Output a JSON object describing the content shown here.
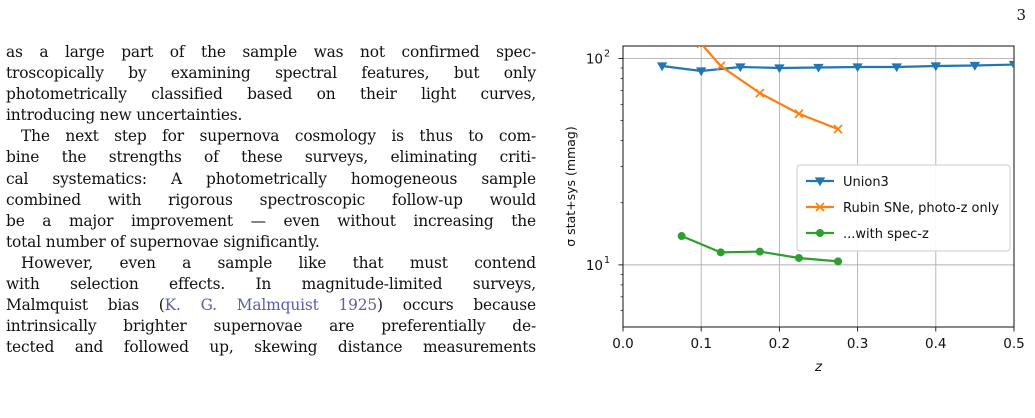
{
  "page": {
    "number": "3"
  },
  "body_text": {
    "lines": [
      {
        "text": "as a large part of the sample was not confirmed spec-",
        "justify": true
      },
      {
        "text": "troscopically by examining spectral features, but only",
        "justify": true
      },
      {
        "text": "photometrically classified based on their light curves,",
        "justify": true
      },
      {
        "text": "introducing new uncertainties.",
        "justify": false
      },
      {
        "text": "The next step for supernova cosmology is thus to com-",
        "justify": true,
        "indent": true
      },
      {
        "text": "bine the strengths of these surveys, eliminating criti-",
        "justify": true
      },
      {
        "text": "cal systematics: A photometrically homogeneous sample",
        "justify": true
      },
      {
        "text": "combined with rigorous spectroscopic follow-up would",
        "justify": true
      },
      {
        "text": "be a major improvement — even without increasing the",
        "justify": true
      },
      {
        "text": "total number of supernovae significantly.",
        "justify": false
      },
      {
        "text": "However, even a sample like that must contend",
        "justify": true,
        "indent": true
      },
      {
        "text": "with selection effects.  In magnitude-limited surveys,",
        "justify": true
      },
      {
        "pre": "Malmquist bias (",
        "cite": "K. G. Malmquist 1925",
        "post": ") occurs because",
        "justify": true
      },
      {
        "text": "intrinsically brighter supernovae are preferentially de-",
        "justify": true
      },
      {
        "text": "tected and followed up, skewing distance measurements",
        "justify": true
      }
    ]
  },
  "chart_data": {
    "type": "line",
    "xlabel": "z",
    "ylabel": "σ stat+sys (mmag)",
    "xlim": [
      0.0,
      0.5
    ],
    "ylim": [
      5,
      115
    ],
    "yscale": "log",
    "grid": true,
    "legend_position": "center-right",
    "x_ticks": [
      0.0,
      0.1,
      0.2,
      0.3,
      0.4,
      0.5
    ],
    "x_tick_labels": [
      "0.0",
      "0.1",
      "0.2",
      "0.3",
      "0.4",
      "0.5"
    ],
    "y_ticks": [
      10,
      100
    ],
    "y_tick_labels": [
      {
        "base": "10",
        "exp": "1"
      },
      {
        "base": "10",
        "exp": "2"
      }
    ],
    "series": [
      {
        "name": "Union3",
        "color": "#1f77b4",
        "marker": "triangle-down",
        "x": [
          0.05,
          0.1,
          0.15,
          0.2,
          0.25,
          0.3,
          0.35,
          0.4,
          0.45,
          0.5
        ],
        "y": [
          92,
          87,
          91,
          90,
          90.5,
          91,
          91,
          92,
          92.5,
          93.5
        ]
      },
      {
        "name": "Rubin SNe, photo-z only",
        "color": "#ff7f0e",
        "marker": "x",
        "x": [
          0.1,
          0.125,
          0.175,
          0.225,
          0.275
        ],
        "y": [
          118,
          92,
          68,
          54,
          45.5
        ]
      },
      {
        "name": "...with spec-z",
        "color": "#2ca02c",
        "marker": "circle",
        "x": [
          0.075,
          0.125,
          0.175,
          0.225,
          0.275
        ],
        "y": [
          13.8,
          11.5,
          11.6,
          10.8,
          10.4
        ]
      }
    ]
  }
}
